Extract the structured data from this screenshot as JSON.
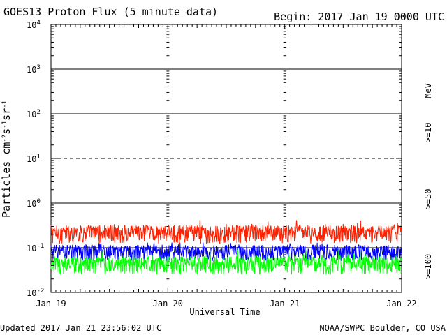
{
  "header": {
    "title": "GOES13 Proton Flux (5 minute data)",
    "begin": "Begin: 2017 Jan 19 0000 UTC"
  },
  "footer": {
    "updated": "Updated 2017 Jan 21 23:56:02 UTC",
    "source": "NOAA/SWPC Boulder, CO USA"
  },
  "chart_data": {
    "type": "line",
    "title": "GOES13 Proton Flux (5 minute data)",
    "xlabel": "Universal Time",
    "ylabel": "Particles cm-2s-1sr-1",
    "yscale": "log",
    "ylim": [
      0.01,
      10000
    ],
    "xlim": [
      "2017-01-19T00:00",
      "2017-01-22T00:00"
    ],
    "x_tick_labels": [
      "Jan 19",
      "Jan 20",
      "Jan 21",
      "Jan 22"
    ],
    "y_tick_labels": [
      {
        "base": "10",
        "exp": "-2"
      },
      {
        "base": "10",
        "exp": "-1"
      },
      {
        "base": "10",
        "exp": "0"
      },
      {
        "base": "10",
        "exp": "1"
      },
      {
        "base": "10",
        "exp": "2"
      },
      {
        "base": "10",
        "exp": "3"
      },
      {
        "base": "10",
        "exp": "4"
      }
    ],
    "reference_lines": [
      {
        "y": 10,
        "style": "dashed"
      },
      {
        "y": 0.1,
        "style": "solid"
      },
      {
        "y": 1,
        "style": "solid"
      },
      {
        "y": 100,
        "style": "solid"
      },
      {
        "y": 1000,
        "style": "solid"
      }
    ],
    "unit_label": "MeV",
    "series": [
      {
        "name": ">=10",
        "color": "#ff2000",
        "typical": 0.16,
        "range": [
          0.11,
          0.42
        ]
      },
      {
        "name": ">=50",
        "color": "#0000ff",
        "typical": 0.07,
        "range": [
          0.045,
          0.13
        ]
      },
      {
        "name": ">=100",
        "color": "#00ff00",
        "typical": 0.035,
        "range": [
          0.025,
          0.09
        ]
      }
    ],
    "grid": false
  }
}
